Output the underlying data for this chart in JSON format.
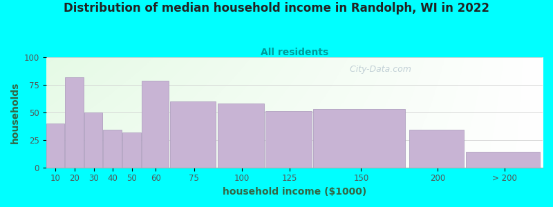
{
  "title": "Distribution of median household income in Randolph, WI in 2022",
  "subtitle": "All residents",
  "xlabel": "household income ($1000)",
  "ylabel": "households",
  "background_color": "#00FFFF",
  "bar_color": "#c8b4d4",
  "bar_edge_color": "#b0a0c0",
  "categories": [
    "10",
    "20",
    "30",
    "40",
    "50",
    "60",
    "75",
    "100",
    "125",
    "150",
    "200",
    "> 200"
  ],
  "values": [
    40,
    82,
    50,
    34,
    32,
    79,
    60,
    58,
    51,
    53,
    34,
    14
  ],
  "x_lefts": [
    10,
    20,
    30,
    40,
    50,
    60,
    75,
    100,
    125,
    150,
    200,
    230
  ],
  "x_widths": [
    10,
    10,
    10,
    10,
    10,
    15,
    25,
    25,
    25,
    50,
    30,
    40
  ],
  "ylim": [
    0,
    100
  ],
  "yticks": [
    0,
    25,
    50,
    75,
    100
  ],
  "xlim": [
    10,
    270
  ],
  "title_fontsize": 12,
  "subtitle_fontsize": 10,
  "label_fontsize": 10,
  "tick_fontsize": 8.5,
  "watermark": "  City-Data.com"
}
